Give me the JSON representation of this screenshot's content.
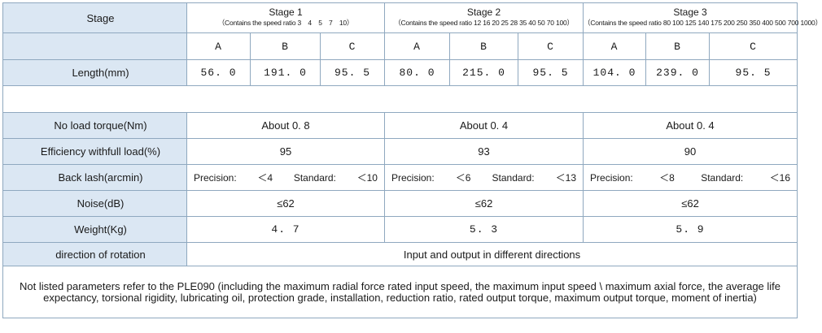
{
  "table": {
    "stage_label": "Stage",
    "stages": [
      {
        "name": "Stage 1",
        "sub": "（Contains the speed ratio 3　4　5　7　10）"
      },
      {
        "name": "Stage 2",
        "sub": "（Contains the speed ratio 12 16 20 25 28 35 40 50 70 100）"
      },
      {
        "name": "Stage 3",
        "sub": "（Contains the speed ratio 80 100 125 140 175 200 250 350 400 500 700 1000）"
      }
    ],
    "dims": [
      "A",
      "B",
      "C",
      "A",
      "B",
      "C",
      "A",
      "B",
      "C"
    ],
    "length": {
      "label": "Length(mm)",
      "values": [
        "56. 0",
        "191. 0",
        "95. 5",
        "80. 0",
        "215. 0",
        "95. 5",
        "104. 0",
        "239. 0",
        "95. 5"
      ]
    },
    "no_load_torque": {
      "label": "No load torque(Nm)",
      "values": [
        "About 0. 8",
        "About 0. 4",
        "About 0. 4"
      ]
    },
    "efficiency": {
      "label": "Efficiency withfull load(%)",
      "values": [
        "95",
        "93",
        "90"
      ]
    },
    "backlash": {
      "label": "Back lash(arcmin)",
      "precision_label": "Precision:",
      "standard_label": "Standard:",
      "values": [
        {
          "precision": "＜4",
          "standard": "＜10"
        },
        {
          "precision": "＜6",
          "standard": "＜13"
        },
        {
          "precision": "＜8",
          "standard": "＜16"
        }
      ]
    },
    "noise": {
      "label": "Noise(dB)",
      "values": [
        "≤62",
        "≤62",
        "≤62"
      ]
    },
    "weight": {
      "label": "Weight(Kg)",
      "values": [
        "4. 7",
        "5. 3",
        "5. 9"
      ]
    },
    "rotation": {
      "label": "direction of rotation",
      "value": "Input and output in different directions"
    },
    "note": "Not listed parameters refer to the PLE090 (including the maximum radial force rated input speed, the maximum input speed \\ maximum axial force, the average life expectancy, torsional rigidity, lubricating oil, protection grade, installation, reduction ratio, rated output torque, maximum output torque, moment of inertia)"
  }
}
